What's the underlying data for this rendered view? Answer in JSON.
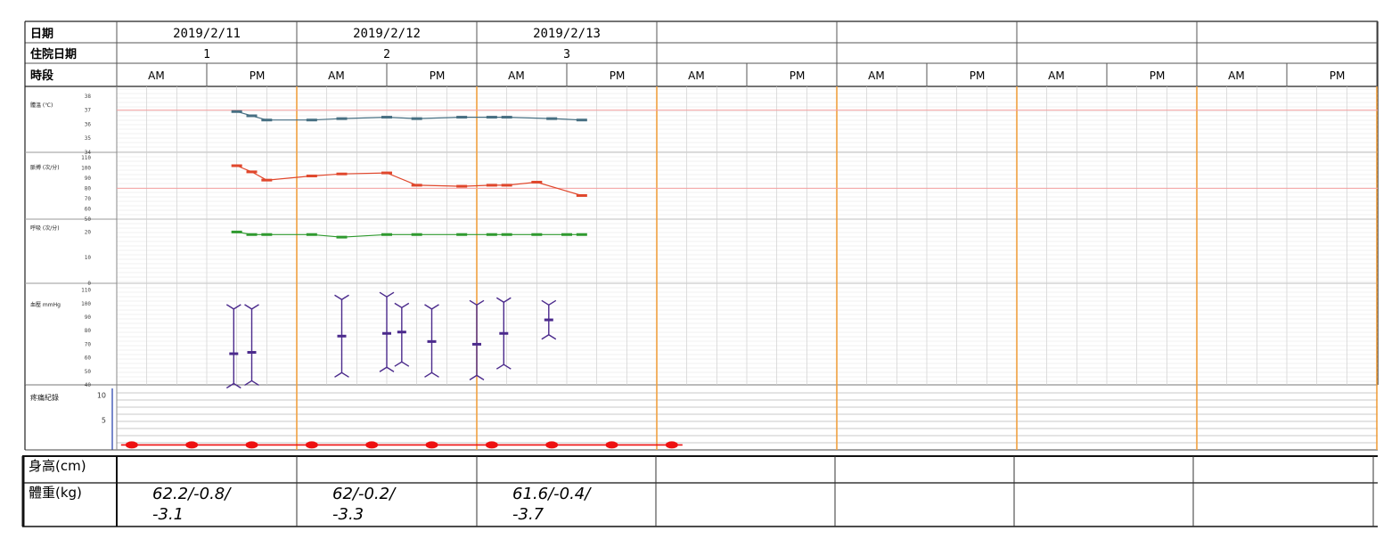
{
  "header": {
    "date_label": "日期",
    "admission_day_label": "住院日期",
    "period_label": "時段",
    "dates": [
      "2019/2/11",
      "2019/2/12",
      "2019/2/13",
      "",
      "",
      "",
      ""
    ],
    "admission_days": [
      "1",
      "2",
      "3",
      "",
      "",
      "",
      ""
    ],
    "periods": [
      [
        "AM",
        "PM"
      ],
      [
        "AM",
        "PM"
      ],
      [
        "AM",
        "PM"
      ],
      [
        "AM",
        "PM"
      ],
      [
        "AM",
        "PM"
      ],
      [
        "AM",
        "PM"
      ],
      [
        "AM",
        "PM"
      ]
    ]
  },
  "panels": {
    "temperature": {
      "label": "體溫 (℃)",
      "ticks": [
        "38",
        "37",
        "36",
        "35",
        "34"
      ]
    },
    "pulse": {
      "label": "脈搏 (次/分)",
      "ticks": [
        "110",
        "100",
        "90",
        "80",
        "70",
        "60",
        "50"
      ]
    },
    "respiration": {
      "label": "呼吸 (次/分)",
      "ticks": [
        "20",
        "10",
        "0"
      ]
    },
    "blood_pressure": {
      "label": "血壓 mmHg",
      "ticks": [
        "110",
        "100",
        "90",
        "80",
        "70",
        "60",
        "50",
        "40"
      ]
    },
    "pain": {
      "label": "疼痛紀錄",
      "ticks": [
        "10",
        "5"
      ]
    }
  },
  "footer": {
    "height_label": "身高(cm)",
    "weight_label": "體重(kg)",
    "heights": [
      "",
      "",
      "",
      "",
      "",
      "",
      ""
    ],
    "weights": [
      {
        "line1": "62.2/-0.8/",
        "line2": "-3.1"
      },
      {
        "line1": "62/-0.2/",
        "line2": "-3.3"
      },
      {
        "line1": "61.6/-0.4/",
        "line2": "-3.7"
      },
      {
        "line1": "",
        "line2": ""
      },
      {
        "line1": "",
        "line2": ""
      },
      {
        "line1": "",
        "line2": ""
      },
      {
        "line1": "",
        "line2": ""
      }
    ]
  },
  "colors": {
    "temperature": "#466f82",
    "pulse": "#e0472c",
    "respiration": "#2f9a2f",
    "blood_pressure": "#4b2a8c",
    "pain": "#ee1111",
    "day_divider": "#f0a040",
    "reference_line": "#f4a0a0"
  },
  "chart_data": {
    "type": "line",
    "x_unit": "time slot (0–6 per day, 4-hour intervals)",
    "x_range": [
      0,
      42
    ],
    "series": [
      {
        "values": [
          {
            "x": 4.0,
            "y": 36.9
          },
          {
            "x": 4.5,
            "y": 36.6
          },
          {
            "x": 5.0,
            "y": 36.3
          },
          {
            "x": 6.5,
            "y": 36.3
          },
          {
            "x": 7.5,
            "y": 36.4
          },
          {
            "x": 9.0,
            "y": 36.5
          },
          {
            "x": 10.0,
            "y": 36.4
          },
          {
            "x": 11.5,
            "y": 36.5
          },
          {
            "x": 12.5,
            "y": 36.5
          },
          {
            "x": 13.0,
            "y": 36.5
          },
          {
            "x": 14.5,
            "y": 36.4
          },
          {
            "x": 15.5,
            "y": 36.3
          }
        ]
      },
      {
        "values": [
          {
            "x": 4.0,
            "y": 102
          },
          {
            "x": 4.5,
            "y": 96
          },
          {
            "x": 5.0,
            "y": 88
          },
          {
            "x": 6.5,
            "y": 92
          },
          {
            "x": 7.5,
            "y": 94
          },
          {
            "x": 9.0,
            "y": 95
          },
          {
            "x": 10.0,
            "y": 83
          },
          {
            "x": 11.5,
            "y": 82
          },
          {
            "x": 12.5,
            "y": 83
          },
          {
            "x": 13.0,
            "y": 83
          },
          {
            "x": 14.0,
            "y": 86
          },
          {
            "x": 15.5,
            "y": 73
          }
        ]
      },
      {
        "values": [
          {
            "x": 4.0,
            "y": 20
          },
          {
            "x": 4.5,
            "y": 19
          },
          {
            "x": 5.0,
            "y": 19
          },
          {
            "x": 6.5,
            "y": 19
          },
          {
            "x": 7.5,
            "y": 18
          },
          {
            "x": 9.0,
            "y": 19
          },
          {
            "x": 10.0,
            "y": 19
          },
          {
            "x": 11.5,
            "y": 19
          },
          {
            "x": 12.5,
            "y": 19
          },
          {
            "x": 13.0,
            "y": 19
          },
          {
            "x": 14.0,
            "y": 19
          },
          {
            "x": 15.0,
            "y": 19
          },
          {
            "x": 15.5,
            "y": 19
          }
        ]
      },
      {
        "type": "range",
        "values": [
          {
            "x": 3.9,
            "systolic": 96,
            "diastolic": 41,
            "mean": 63
          },
          {
            "x": 4.5,
            "systolic": 96,
            "diastolic": 43,
            "mean": 64
          },
          {
            "x": 7.5,
            "systolic": 103,
            "diastolic": 49,
            "mean": 76
          },
          {
            "x": 9.0,
            "systolic": 105,
            "diastolic": 53,
            "mean": 78
          },
          {
            "x": 9.5,
            "systolic": 97,
            "diastolic": 57,
            "mean": 79
          },
          {
            "x": 10.5,
            "systolic": 96,
            "diastolic": 49,
            "mean": 72
          },
          {
            "x": 12.0,
            "systolic": 99,
            "diastolic": 47,
            "mean": 70
          },
          {
            "x": 12.9,
            "systolic": 101,
            "diastolic": 55,
            "mean": 78
          },
          {
            "x": 14.4,
            "systolic": 99,
            "diastolic": 77,
            "mean": 88
          }
        ]
      },
      {
        "values": [
          {
            "x": 0.5,
            "y": 0
          },
          {
            "x": 2.5,
            "y": 0
          },
          {
            "x": 4.5,
            "y": 0
          },
          {
            "x": 6.5,
            "y": 0
          },
          {
            "x": 8.5,
            "y": 0
          },
          {
            "x": 10.5,
            "y": 0
          },
          {
            "x": 12.5,
            "y": 0
          },
          {
            "x": 14.5,
            "y": 0
          },
          {
            "x": 16.5,
            "y": 0
          },
          {
            "x": 18.5,
            "y": 0
          }
        ]
      }
    ],
    "reference_lines": [
      {
        "value": 37
      },
      {
        "value": 80
      }
    ],
    "grid": true
  }
}
